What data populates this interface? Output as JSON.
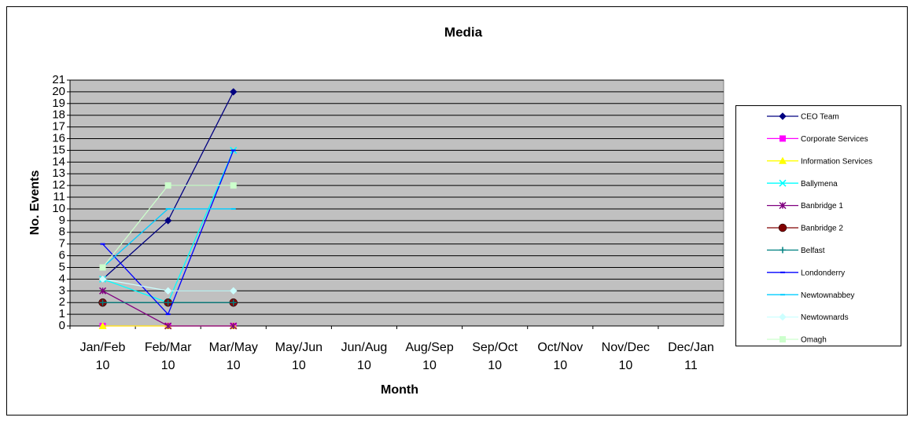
{
  "chart_data": {
    "type": "line",
    "title": "Media",
    "x_label": "Month",
    "y_label": "No. Events",
    "categories": [
      "Jan/Feb 10",
      "Feb/Mar 10",
      "Mar/May 10",
      "May/Jun 10",
      "Jun/Aug 10",
      "Aug/Sep 10",
      "Sep/Oct 10",
      "Oct/Nov 10",
      "Nov/Dec 10",
      "Dec/Jan 11"
    ],
    "ylim": [
      0,
      21
    ],
    "yticks": [
      0,
      1,
      2,
      3,
      4,
      5,
      6,
      7,
      8,
      9,
      10,
      11,
      12,
      13,
      14,
      15,
      16,
      17,
      18,
      19,
      20,
      21
    ],
    "grid": true,
    "legend": "right",
    "series": [
      {
        "name": "CEO Team",
        "color": "#000080",
        "marker": "diamond",
        "values": [
          4,
          9,
          20,
          null,
          null,
          null,
          null,
          null,
          null,
          null
        ]
      },
      {
        "name": "Corporate Services",
        "color": "#FF00FF",
        "marker": "square",
        "values": [
          0,
          0,
          0,
          null,
          null,
          null,
          null,
          null,
          null,
          null
        ]
      },
      {
        "name": "Information Services",
        "color": "#FFFF00",
        "marker": "triangle",
        "values": [
          0,
          0,
          0,
          null,
          null,
          null,
          null,
          null,
          null,
          null
        ]
      },
      {
        "name": "Ballymena",
        "color": "#00FFFF",
        "marker": "x",
        "values": [
          4,
          2,
          15,
          null,
          null,
          null,
          null,
          null,
          null,
          null
        ]
      },
      {
        "name": "Banbridge 1",
        "color": "#800080",
        "marker": "star",
        "values": [
          3,
          0,
          0,
          null,
          null,
          null,
          null,
          null,
          null,
          null
        ]
      },
      {
        "name": "Banbridge 2",
        "color": "#800000",
        "marker": "circle",
        "values": [
          2,
          2,
          2,
          null,
          null,
          null,
          null,
          null,
          null,
          null
        ]
      },
      {
        "name": "Belfast",
        "color": "#008080",
        "marker": "plus",
        "values": [
          2,
          2,
          2,
          null,
          null,
          null,
          null,
          null,
          null,
          null
        ]
      },
      {
        "name": "Londonderry",
        "color": "#0000FF",
        "marker": "dash",
        "values": [
          7,
          1,
          15,
          null,
          null,
          null,
          null,
          null,
          null,
          null
        ]
      },
      {
        "name": "Newtownabbey",
        "color": "#00CCFF",
        "marker": "dash",
        "values": [
          5,
          10,
          10,
          null,
          null,
          null,
          null,
          null,
          null,
          null
        ]
      },
      {
        "name": "Newtownards",
        "color": "#CCFFFF",
        "marker": "diamond",
        "values": [
          4,
          3,
          3,
          null,
          null,
          null,
          null,
          null,
          null,
          null
        ]
      },
      {
        "name": "Omagh",
        "color": "#CCFFCC",
        "marker": "square",
        "values": [
          5,
          12,
          12,
          null,
          null,
          null,
          null,
          null,
          null,
          null
        ]
      }
    ]
  }
}
